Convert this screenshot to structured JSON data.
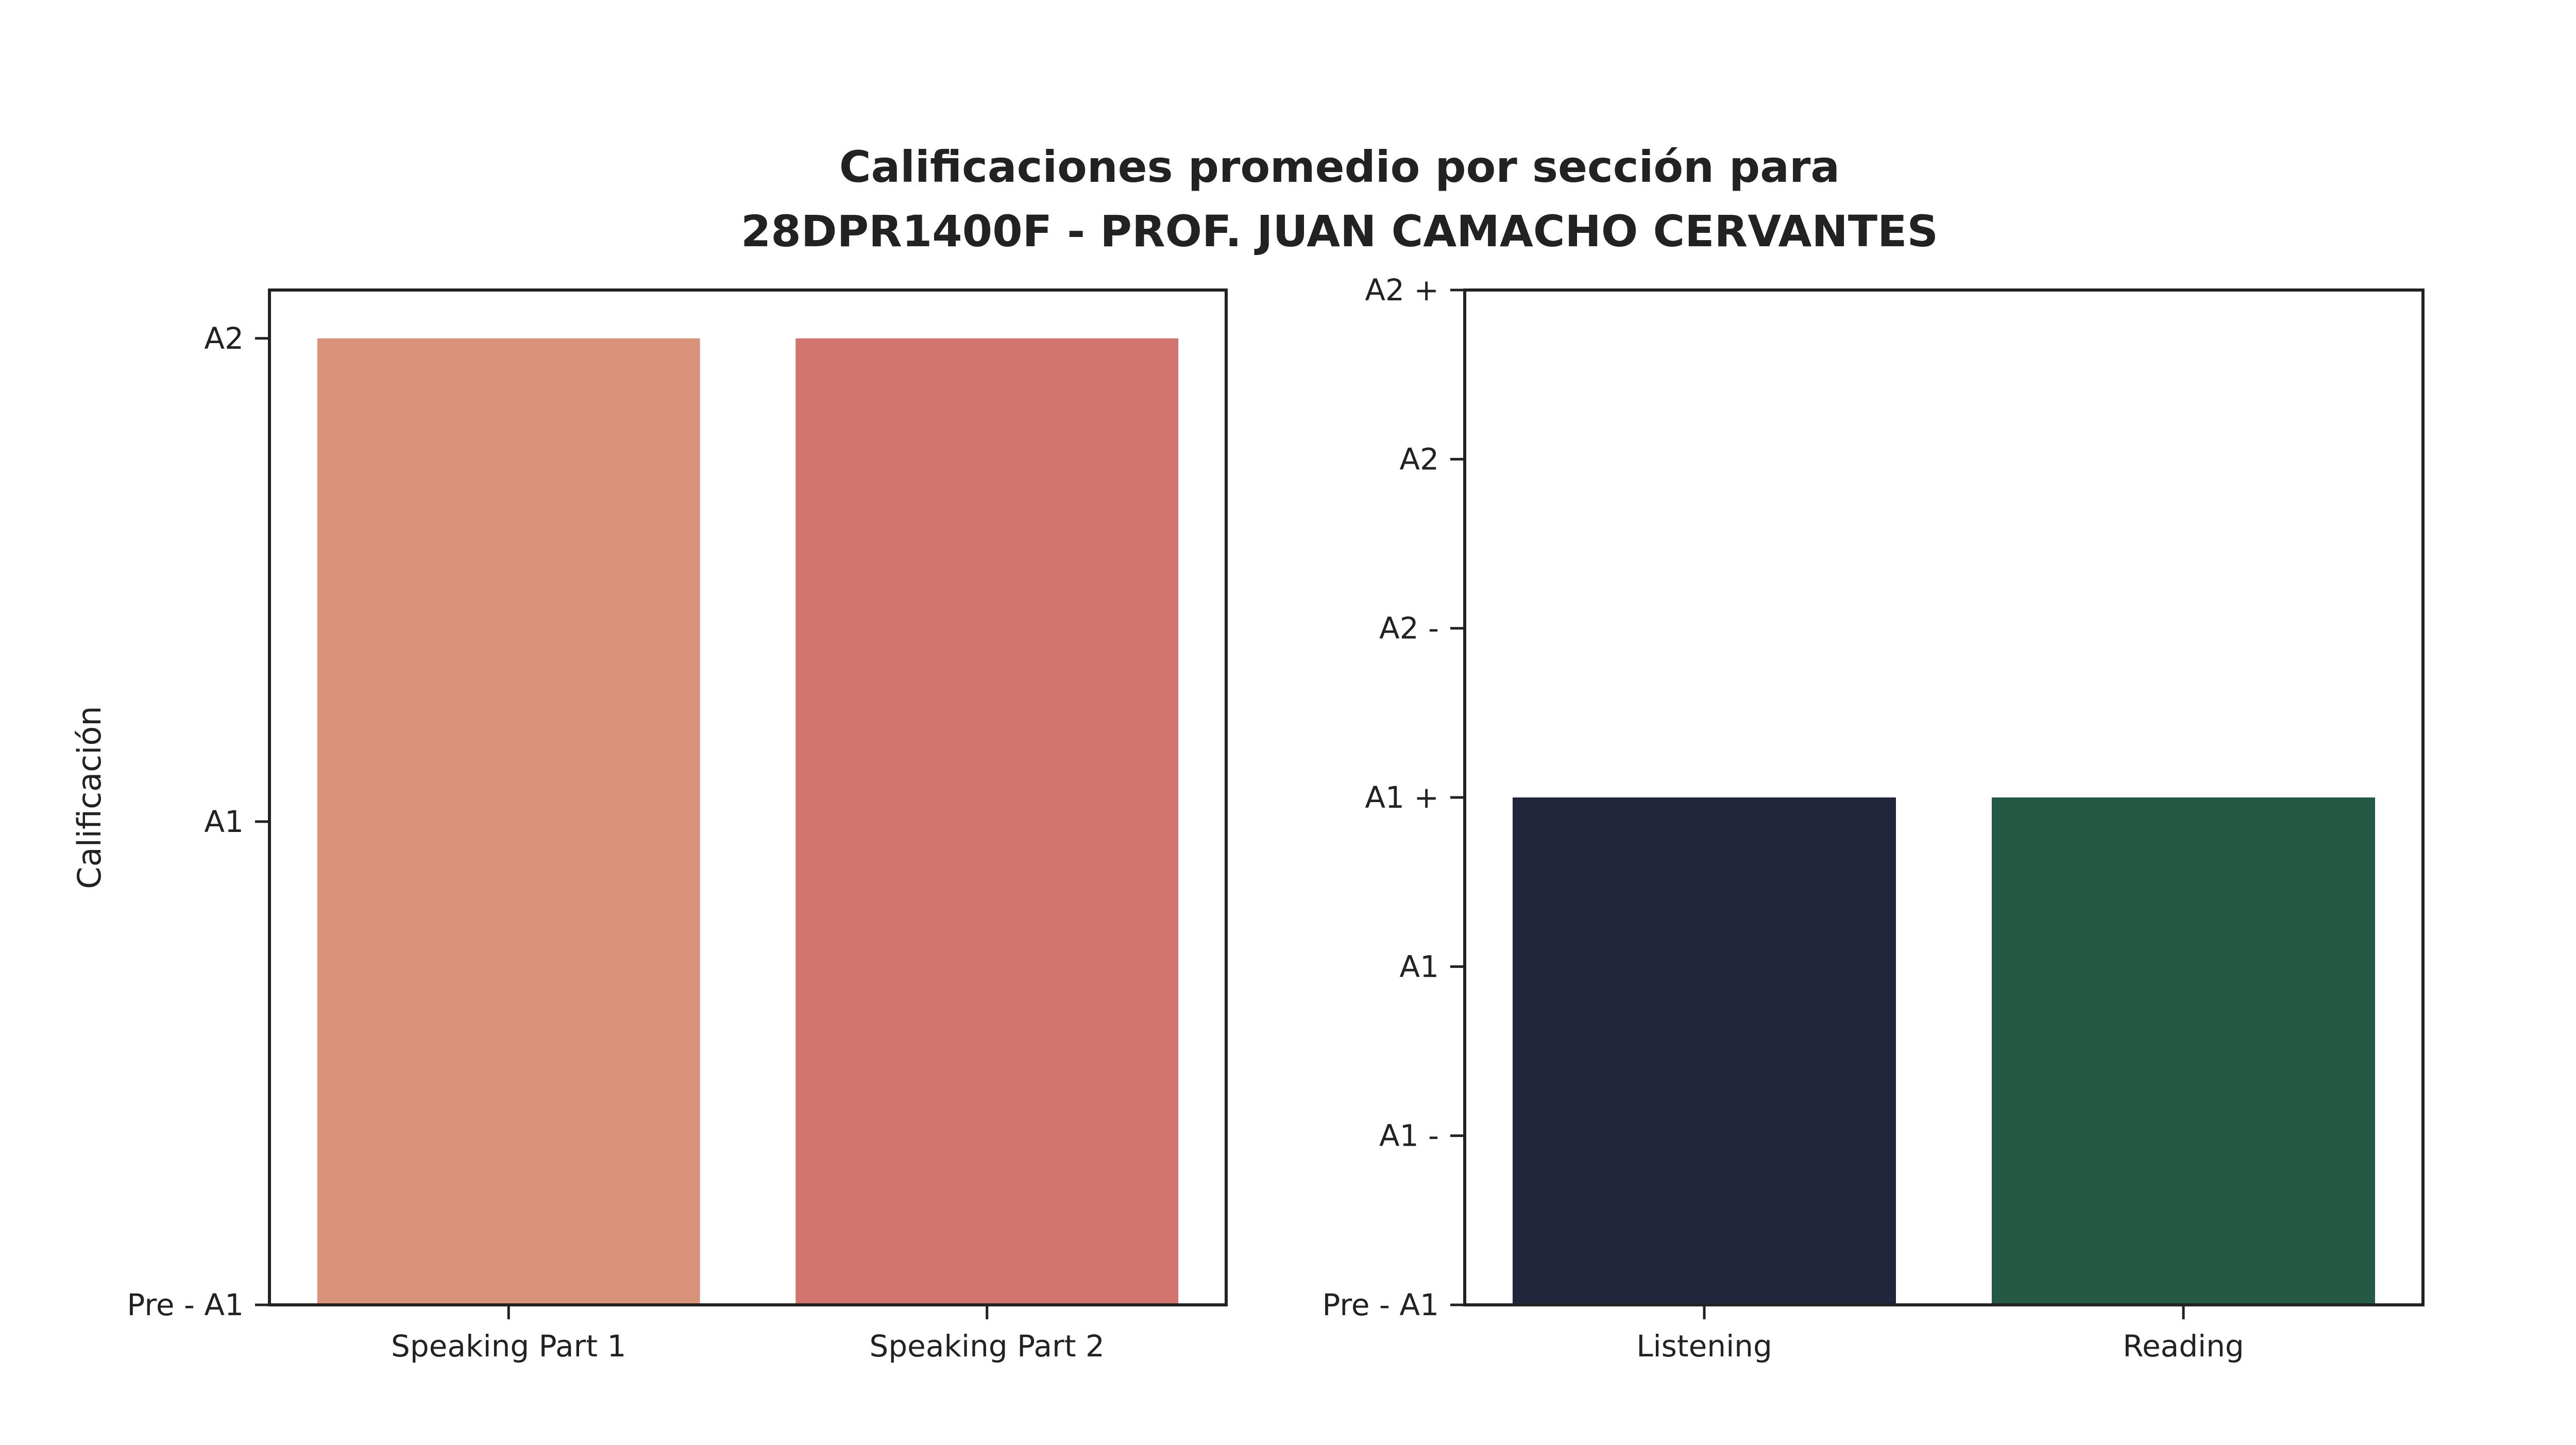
{
  "title_lines": [
    "Calificaciones promedio por sección para",
    "28DPR1400F - PROF. JUAN CAMACHO CERVANTES"
  ],
  "chart_data": [
    {
      "type": "bar",
      "categories": [
        "Speaking Part 1",
        "Speaking Part 2"
      ],
      "values": [
        2,
        2
      ],
      "colors": [
        "#d9937a",
        "#d2756e"
      ],
      "ylabel": "Calificación",
      "ylim": [
        0,
        2.1
      ],
      "yticks": [
        {
          "value": 0,
          "label": "Pre - A1"
        },
        {
          "value": 1,
          "label": "A1"
        },
        {
          "value": 2,
          "label": "A2"
        }
      ],
      "grid": false
    },
    {
      "type": "bar",
      "categories": [
        "Listening",
        "Reading"
      ],
      "values": [
        3,
        3
      ],
      "colors": [
        "#21263d",
        "#245a43"
      ],
      "ylabel": "",
      "ylim": [
        0,
        6
      ],
      "yticks": [
        {
          "value": 0,
          "label": "Pre - A1"
        },
        {
          "value": 1,
          "label": "A1 -"
        },
        {
          "value": 2,
          "label": "A1"
        },
        {
          "value": 3,
          "label": "A1 +"
        },
        {
          "value": 4,
          "label": "A2 -"
        },
        {
          "value": 5,
          "label": "A2"
        },
        {
          "value": 6,
          "label": "A2 +"
        }
      ],
      "grid": false
    }
  ]
}
